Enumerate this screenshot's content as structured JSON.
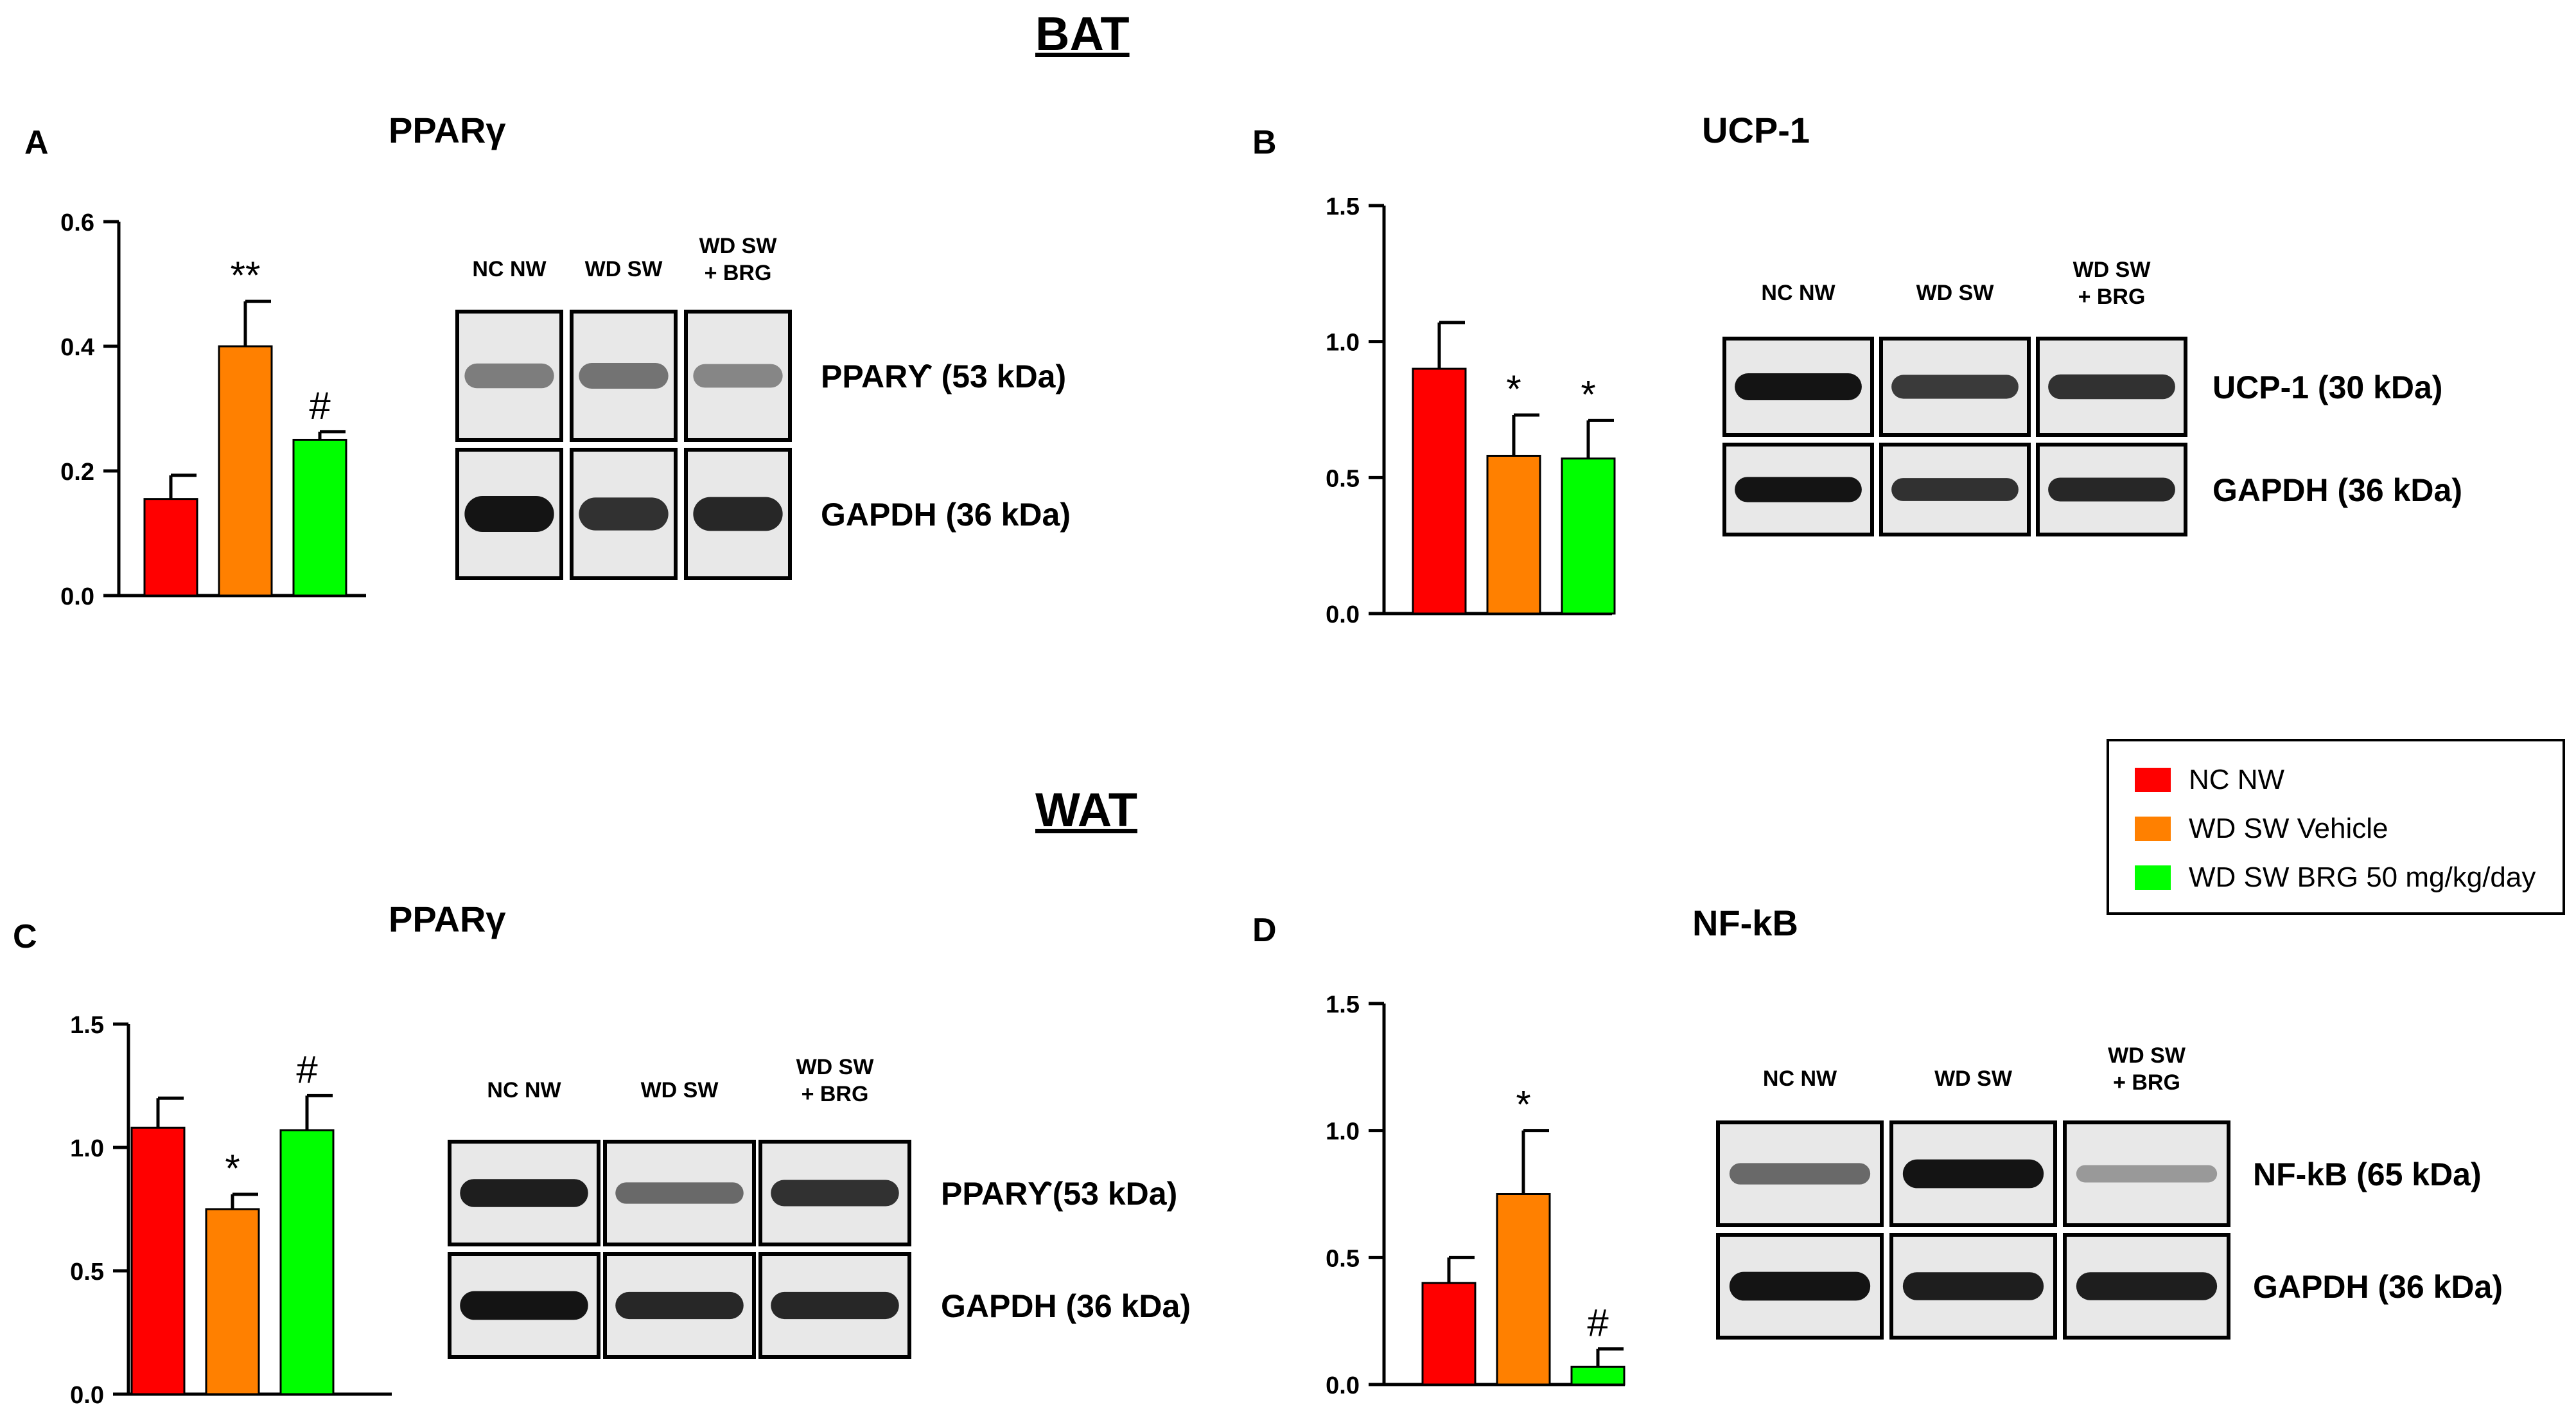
{
  "sections": {
    "top": "BAT",
    "bottom": "WAT"
  },
  "colors": {
    "nc_nw": "#ff0000",
    "wd_sw_vehicle": "#ff8000",
    "wd_sw_brg": "#00ff00"
  },
  "legend": {
    "items": [
      {
        "label": "NC NW",
        "color": "#ff0000"
      },
      {
        "label": "WD SW Vehicle",
        "color": "#ff8000"
      },
      {
        "label": "WD SW BRG 50 mg/kg/day",
        "color": "#00ff00"
      }
    ]
  },
  "chart_data": [
    {
      "panel": "A",
      "title": "PPARγ",
      "type": "bar",
      "categories": [
        "NC NW",
        "WD SW Vehicle",
        "WD SW BRG 50 mg/kg/day"
      ],
      "values": [
        0.155,
        0.4,
        0.25
      ],
      "errors": [
        0.038,
        0.072,
        0.013
      ],
      "annotations": [
        "",
        "**",
        "#"
      ],
      "ylim": [
        0,
        0.6
      ],
      "yticks": [
        0.0,
        0.2,
        0.4,
        0.6
      ],
      "ytick_labels": [
        "0.0",
        "0.2",
        "0.4",
        "0.6"
      ],
      "blot": {
        "lane_labels": [
          "NC NW",
          "WD SW",
          "WD SW\n+ BRG"
        ],
        "rows": [
          {
            "label": "PPARϒ (53 kDa)",
            "intensity": [
              0.45,
              0.5,
              0.4
            ]
          },
          {
            "label": "GAPDH (36 kDa)",
            "intensity": [
              1.0,
              0.85,
              0.9
            ]
          }
        ]
      }
    },
    {
      "panel": "B",
      "title": "UCP-1",
      "type": "bar",
      "categories": [
        "NC NW",
        "WD SW Vehicle",
        "WD SW BRG 50 mg/kg/day"
      ],
      "values": [
        0.9,
        0.58,
        0.57
      ],
      "errors": [
        0.17,
        0.15,
        0.14
      ],
      "annotations": [
        "",
        "*",
        "*"
      ],
      "ylim": [
        0,
        1.5
      ],
      "yticks": [
        0.0,
        0.5,
        1.0,
        1.5
      ],
      "ytick_labels": [
        "0.0",
        "0.5",
        "1.0",
        "1.5"
      ],
      "blot": {
        "lane_labels": [
          "NC NW",
          "WD SW",
          "WD SW\n+ BRG"
        ],
        "rows": [
          {
            "label": "UCP-1 (30 kDa)",
            "intensity": [
              1.0,
              0.8,
              0.85
            ]
          },
          {
            "label": "GAPDH (36 kDa)",
            "intensity": [
              1.0,
              0.85,
              0.9
            ]
          }
        ]
      }
    },
    {
      "panel": "C",
      "title": "PPARγ",
      "type": "bar",
      "categories": [
        "NC NW",
        "WD SW Vehicle",
        "WD SW BRG 50 mg/kg/day"
      ],
      "values": [
        1.08,
        0.75,
        1.07
      ],
      "errors": [
        0.12,
        0.06,
        0.14
      ],
      "annotations": [
        "",
        "*",
        "#"
      ],
      "ylim": [
        0,
        1.5
      ],
      "yticks": [
        0.0,
        0.5,
        1.0,
        1.5
      ],
      "ytick_labels": [
        "0.0",
        "0.5",
        "1.0",
        "1.5"
      ],
      "blot": {
        "lane_labels": [
          "NC NW",
          "WD SW",
          "WD SW\n+ BRG"
        ],
        "rows": [
          {
            "label": "PPARϒ(53 kDa)",
            "intensity": [
              0.95,
              0.55,
              0.85
            ]
          },
          {
            "label": "GAPDH (36 kDa)",
            "intensity": [
              1.0,
              0.9,
              0.9
            ]
          }
        ]
      }
    },
    {
      "panel": "D",
      "title": "NF-kB",
      "type": "bar",
      "categories": [
        "NC NW",
        "WD SW Vehicle",
        "WD SW BRG 50 mg/kg/day"
      ],
      "values": [
        0.4,
        0.75,
        0.07
      ],
      "errors": [
        0.1,
        0.25,
        0.07
      ],
      "annotations": [
        "",
        "*",
        "#"
      ],
      "ylim": [
        0,
        1.5
      ],
      "yticks": [
        0.0,
        0.5,
        1.0,
        1.5
      ],
      "ytick_labels": [
        "0.0",
        "0.5",
        "1.0",
        "1.5"
      ],
      "blot": {
        "lane_labels": [
          "NC NW",
          "WD SW",
          "WD SW\n+ BRG"
        ],
        "rows": [
          {
            "label": "NF-kB (65 kDa)",
            "intensity": [
              0.55,
              1.0,
              0.3
            ]
          },
          {
            "label": "GAPDH (36 kDa)",
            "intensity": [
              1.0,
              0.95,
              0.95
            ]
          }
        ]
      }
    }
  ]
}
